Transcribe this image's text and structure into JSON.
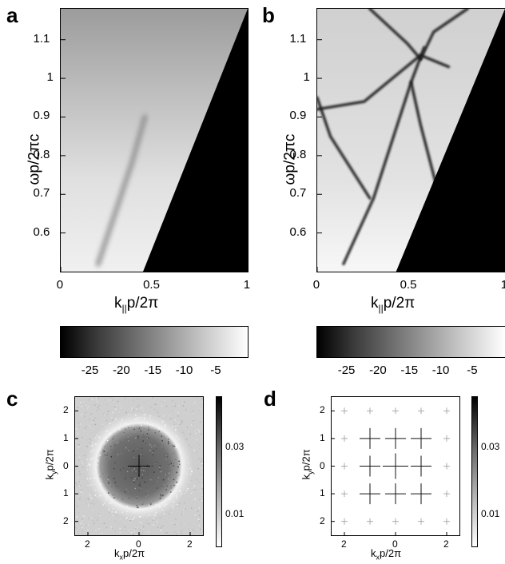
{
  "panels": {
    "a": {
      "letter": "a"
    },
    "b": {
      "letter": "b"
    },
    "c": {
      "letter": "c"
    },
    "d": {
      "letter": "d"
    }
  },
  "chart_data": [
    {
      "panel": "a",
      "type": "heatmap",
      "xlabel_main": "k",
      "xlabel_sub": "||",
      "xlabel_rest": "p/2π",
      "ylabel": "ωp/2πc",
      "xlim": [
        0,
        1
      ],
      "ylim": [
        0.5,
        1.18
      ],
      "xticks": [
        "0",
        "0.5",
        "1"
      ],
      "yticks": [
        "0.6",
        "0.7",
        "0.8",
        "0.9",
        "1",
        "1.1"
      ],
      "light_line": {
        "from": [
          0.44,
          0.5
        ],
        "to": [
          1.0,
          1.18
        ]
      },
      "features": [
        {
          "x": [
            0.2,
            0.38,
            0.45
          ],
          "y": [
            0.52,
            0.78,
            0.9
          ]
        }
      ]
    },
    {
      "panel": "b",
      "type": "heatmap",
      "xlabel_main": "k",
      "xlabel_sub": "||",
      "xlabel_rest": "p/2π",
      "ylabel": "ωp/2πc",
      "xlim": [
        0,
        1
      ],
      "ylim": [
        0.5,
        1.18
      ],
      "xticks": [
        "0",
        "0.5",
        "1"
      ],
      "yticks": [
        "0.6",
        "0.7",
        "0.8",
        "0.9",
        "1",
        "1.1"
      ],
      "light_line": {
        "from": [
          0.42,
          0.5
        ],
        "to": [
          1.0,
          1.18
        ]
      },
      "features": [
        {
          "x": [
            0.0,
            0.25,
            0.55,
            0.7
          ],
          "y": [
            0.92,
            0.94,
            1.06,
            1.03
          ]
        },
        {
          "x": [
            0.0,
            0.07,
            0.28
          ],
          "y": [
            0.95,
            0.85,
            0.69
          ]
        },
        {
          "x": [
            0.14,
            0.3,
            0.5,
            0.57
          ],
          "y": [
            0.52,
            0.69,
            0.99,
            1.08
          ]
        },
        {
          "x": [
            0.5,
            0.55,
            0.7
          ],
          "y": [
            0.99,
            0.88,
            0.6
          ]
        },
        {
          "x": [
            0.28,
            0.48,
            0.55
          ],
          "y": [
            1.18,
            1.09,
            1.05
          ]
        },
        {
          "x": [
            0.55,
            0.62,
            0.8
          ],
          "y": [
            1.05,
            1.12,
            1.18
          ]
        }
      ]
    },
    {
      "panel": "colorbar-a",
      "type": "heatmap",
      "colorbar_ticks": [
        "-25",
        "-20",
        "-15",
        "-10",
        "-5"
      ],
      "tick_values": [
        -25,
        -20,
        -15,
        -10,
        -5
      ],
      "range": [
        -30,
        0
      ]
    },
    {
      "panel": "colorbar-b",
      "type": "heatmap",
      "colorbar_ticks": [
        "-25",
        "-20",
        "-15",
        "-10",
        "-5"
      ],
      "tick_values": [
        -25,
        -20,
        -15,
        -10,
        -5
      ],
      "range": [
        -30,
        0
      ]
    },
    {
      "panel": "c",
      "type": "heatmap",
      "xlabel_main": "k",
      "xlabel_sub": "x",
      "xlabel_rest": "p/2π",
      "ylabel_main": "k",
      "ylabel_sub": "y",
      "ylabel_rest": "p/2π",
      "xlim": [
        -2.5,
        2.5
      ],
      "ylim": [
        -2.5,
        2.5
      ],
      "xticks": [
        "2",
        "0",
        "2"
      ],
      "yticks": [
        "2",
        "1",
        "0",
        "1",
        "2"
      ],
      "colorbar_ticks": [
        "0.03",
        "0.01"
      ],
      "colorbar_values": [
        0.03,
        0.01
      ],
      "colorbar_range": [
        0,
        0.045
      ],
      "ring": {
        "inner_radius": 0.0,
        "outer_radius": 1.6,
        "halo_radius": 2.1
      }
    },
    {
      "panel": "d",
      "type": "heatmap",
      "xlabel_main": "k",
      "xlabel_sub": "x",
      "xlabel_rest": "p/2π",
      "ylabel_main": "k",
      "ylabel_sub": "y",
      "ylabel_rest": "p/2π",
      "xlim": [
        -2.5,
        2.5
      ],
      "ylim": [
        -2.5,
        2.5
      ],
      "xticks": [
        "2",
        "0",
        "2"
      ],
      "yticks": [
        "2",
        "1",
        "0",
        "1",
        "2"
      ],
      "colorbar_ticks": [
        "0.03",
        "0.01"
      ],
      "colorbar_values": [
        0.03,
        0.01
      ],
      "colorbar_range": [
        0,
        0.045
      ],
      "lattice_points": [
        -2,
        -1,
        0,
        1,
        2
      ]
    }
  ]
}
